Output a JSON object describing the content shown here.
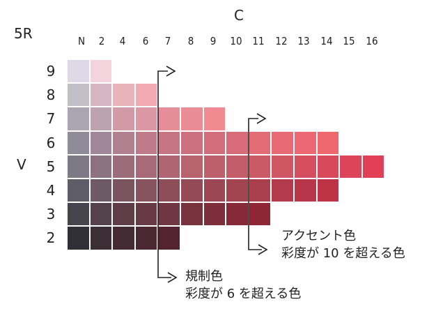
{
  "diagram": {
    "hue_label": "5R",
    "chroma_axis_title": "C",
    "value_axis_title": "V",
    "chroma_ticks": [
      "N",
      "2",
      "4",
      "6",
      "7",
      "8",
      "9",
      "10",
      "11",
      "12",
      "13",
      "14",
      "15",
      "16"
    ],
    "value_ticks": [
      "9",
      "8",
      "7",
      "6",
      "5",
      "4",
      "3",
      "2"
    ],
    "rows": [
      {
        "value": "9",
        "colors": [
          "#ddd7e6",
          "#f3d3dc"
        ]
      },
      {
        "value": "8",
        "colors": [
          "#c2bec8",
          "#d6b6c2",
          "#e8b3bb",
          "#f2a9b1"
        ]
      },
      {
        "value": "7",
        "colors": [
          "#aaa5b0",
          "#bca3af",
          "#d19aa6",
          "#db97a3",
          "#e58d99",
          "#ea8c96",
          "#f18b91"
        ]
      },
      {
        "value": "6",
        "colors": [
          "#8f8b98",
          "#a1879a",
          "#b2818f",
          "#c07b8a",
          "#c67583",
          "#ca707e",
          "#d26e7b",
          "#d86b79",
          "#e26c76",
          "#e86a74",
          "#ec6872",
          "#ef6870"
        ]
      },
      {
        "value": "5",
        "colors": [
          "#7d7985",
          "#8c7180",
          "#9c6c7b",
          "#a86a78",
          "#b06672",
          "#b7646f",
          "#bc606c",
          "#c45d6a",
          "#ca5a66",
          "#cf5764",
          "#d44e5f",
          "#d84a5b",
          "#dc445a",
          "#e03f55"
        ]
      },
      {
        "value": "4",
        "colors": [
          "#5f5d68",
          "#6e5a66",
          "#7a5560",
          "#86525d",
          "#8d4e5a",
          "#954a57",
          "#9c4754",
          "#a34451",
          "#aa3f4e",
          "#b13a4c",
          "#b93549",
          "#bf3347"
        ]
      },
      {
        "value": "3",
        "colors": [
          "#45434c",
          "#55414c",
          "#5e3d47",
          "#683a45",
          "#703641",
          "#77323e",
          "#7e2d3b",
          "#862938",
          "#8e2635"
        ]
      },
      {
        "value": "2",
        "colors": [
          "#312f36",
          "#3b2e35",
          "#442b33",
          "#4b2731",
          "#53232f"
        ]
      }
    ],
    "annotations": [
      {
        "chroma_boundary": "6",
        "lines": [
          "規制色",
          "彩度が 6 を超える色"
        ]
      },
      {
        "chroma_boundary": "10",
        "lines": [
          "アクセント色",
          "彩度が 10 を超える色"
        ]
      }
    ]
  }
}
